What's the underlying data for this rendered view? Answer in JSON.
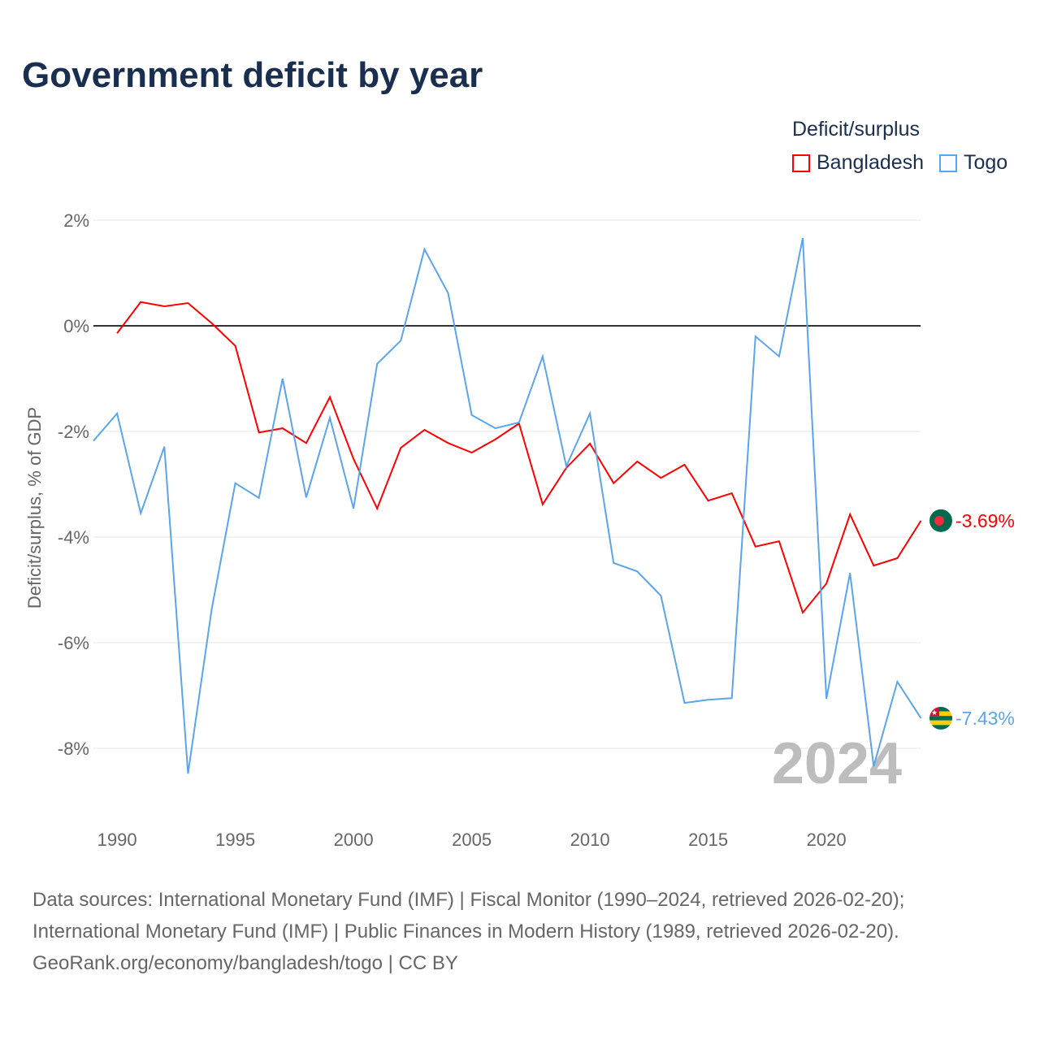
{
  "title": "Government deficit by year",
  "legend": {
    "title": "Deficit/surplus",
    "items": [
      "Bangladesh",
      "Togo"
    ]
  },
  "sources": [
    "Data sources: International Monetary Fund (IMF) | Fiscal Monitor (1990–2024, retrieved 2026-02-20);",
    "International Monetary Fund (IMF) | Public Finances in Modern History (1989, retrieved 2026-02-20).",
    "GeoRank.org/economy/bangladesh/togo | CC BY"
  ],
  "chart_data": {
    "type": "line",
    "title": "Government deficit by year",
    "ylabel": "Deficit/surplus, % of GDP",
    "xlabel": "",
    "ylim": [
      -9.3,
      2.3
    ],
    "xlim": [
      1989,
      2024
    ],
    "yticks": [
      2,
      0,
      -2,
      -4,
      -6,
      -8
    ],
    "ytick_labels": [
      "2%",
      "0%",
      "-2%",
      "-4%",
      "-6%",
      "-8%"
    ],
    "xticks": [
      1990,
      1995,
      2000,
      2005,
      2010,
      2015,
      2020
    ],
    "year_label": "2024",
    "series": [
      {
        "name": "Bangladesh",
        "color": "#ff0000",
        "start": 1990,
        "values": [
          -0.14,
          0.45,
          0.37,
          0.43,
          0.05,
          -0.38,
          -2.02,
          -1.94,
          -2.22,
          -1.35,
          -2.52,
          -3.46,
          -2.31,
          -1.97,
          -2.22,
          -2.4,
          -2.15,
          -1.85,
          -3.38,
          -2.69,
          -2.23,
          -2.98,
          -2.57,
          -2.88,
          -2.63,
          -3.31,
          -3.17,
          -4.18,
          -4.08,
          -5.43,
          -4.88,
          -3.57,
          -4.54,
          -4.4,
          -3.69
        ],
        "end_label": "-3.69%"
      },
      {
        "name": "Togo",
        "color": "#5aa5ec",
        "start": 1989,
        "values": [
          -2.18,
          -1.66,
          -3.55,
          -2.29,
          -8.48,
          -5.37,
          -2.98,
          -3.26,
          -1.0,
          -3.25,
          -1.74,
          -3.46,
          -0.72,
          -0.28,
          1.45,
          0.62,
          -1.69,
          -1.94,
          -1.83,
          -0.58,
          -2.66,
          -1.66,
          -4.49,
          -4.65,
          -5.11,
          -7.14,
          -7.08,
          -7.05,
          -0.2,
          -0.58,
          1.66,
          -7.06,
          -4.68,
          -8.34,
          -6.74,
          -7.43
        ],
        "end_label": "-7.43%"
      }
    ]
  }
}
